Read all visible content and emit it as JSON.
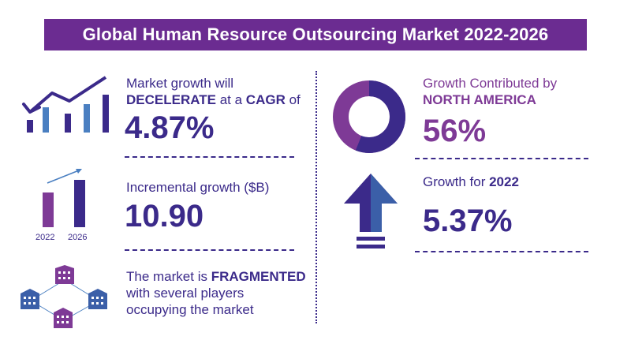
{
  "title": "Global Human Resource Outsourcing Market 2022-2026",
  "cagr": {
    "line1": "Market growth will",
    "line2_strong1": "DECELERATE",
    "line2_mid": " at a ",
    "line2_strong2": "CAGR",
    "line2_end": " of",
    "value": "4.87%"
  },
  "incremental": {
    "label": "Incremental growth ($B)",
    "value": "10.90",
    "year_start": "2022",
    "year_end": "2026"
  },
  "fragmented": {
    "line1_pre": "The market is ",
    "line1_strong": "FRAGMENTED",
    "line2": "with several players",
    "line3": "occupying the market"
  },
  "region": {
    "line1": "Growth Contributed by",
    "line2": "NORTH AMERICA",
    "value": "56%",
    "share": 0.56
  },
  "yoy": {
    "label_pre": "Growth for ",
    "label_year": "2022",
    "value": "5.37%"
  },
  "colors": {
    "navy": "#3b2a8a",
    "purple": "#7e3a96",
    "title_bg": "#6b2c91",
    "light_blue": "#4a7fc1"
  }
}
